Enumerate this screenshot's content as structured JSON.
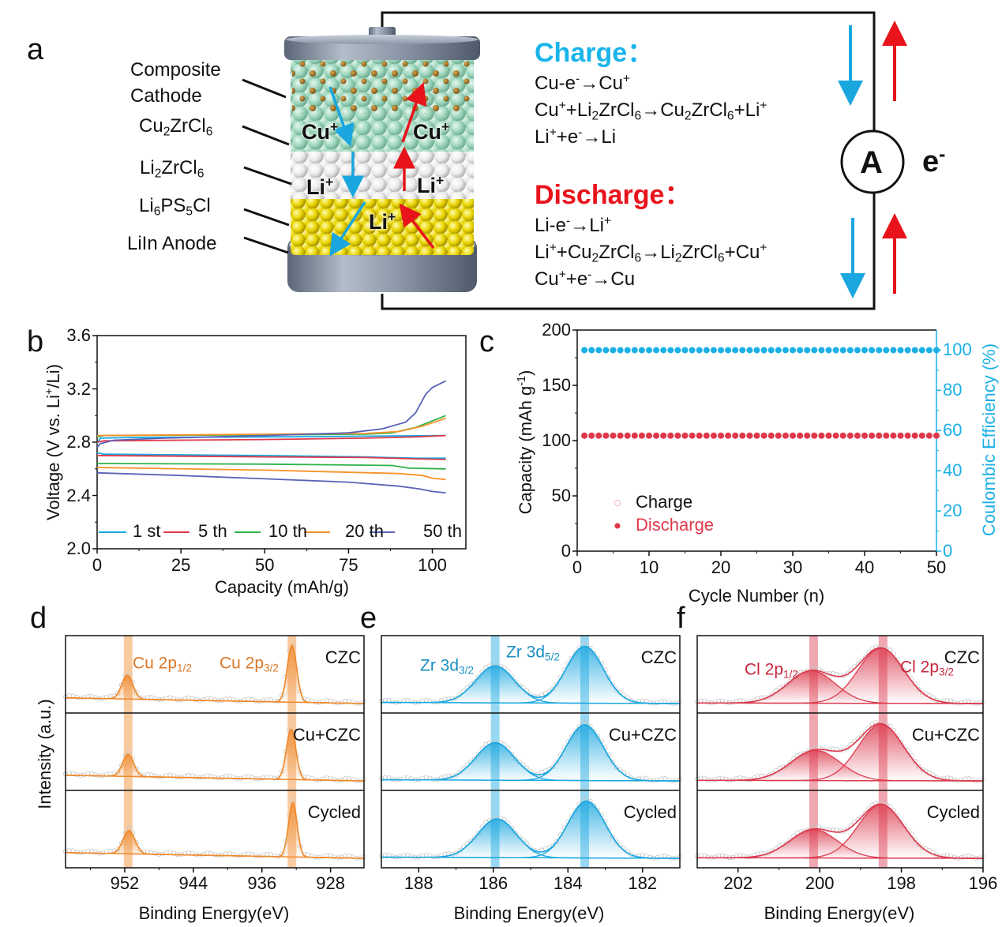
{
  "panel_letters": {
    "a": "a",
    "b": "b",
    "c": "c",
    "d": "d",
    "e": "e",
    "f": "f"
  },
  "schematic": {
    "layers": [
      "Composite<br>Cathode",
      "Cu<sub>2</sub>ZrCl<sub>6</sub>",
      "Li<sub>2</sub>ZrCl<sub>6</sub>",
      "Li<sub>6</sub>PS<sub>5</sub>Cl",
      "LiIn Anode"
    ],
    "ion_labels": {
      "cu_left": "Cu<sup>+</sup>",
      "cu_right": "Cu<sup>+</sup>",
      "li_left": "Li<sup>+</sup>",
      "li_right": "Li<sup>+</sup>",
      "li_bottom": "Li<sup>+</sup>"
    },
    "ammeter": "A",
    "electron": "e<sup>-</sup>",
    "charge_title": "Charge：",
    "charge_equations": [
      "Cu-e<sup>-</sup>→Cu<sup>+</sup>",
      "Cu<sup>+</sup>+Li<sub>2</sub>ZrCl<sub>6</sub>→Cu<sub>2</sub>ZrCl<sub>6</sub>+Li<sup>+</sup>",
      "Li<sup>+</sup>+e<sup>-</sup>→Li"
    ],
    "discharge_title": "Discharge：",
    "discharge_equations": [
      "Li-e<sup>-</sup>→Li<sup>+</sup>",
      "Li<sup>+</sup>+Cu<sub>2</sub>ZrCl<sub>6</sub>→Li<sub>2</sub>ZrCl<sub>6</sub>+Cu<sup>+</sup>",
      "Cu<sup>+</sup>+e<sup>-</sup>→Cu"
    ],
    "colors": {
      "charge": "#1aa7e0",
      "discharge": "#e8131b",
      "cathode": "#a9dcc6",
      "electrolyte_top": "#f2f2f2",
      "electrolyte_bottom": "#e6d200",
      "current_collector": "#7d8898"
    }
  },
  "chart_data": [
    {
      "id": "b",
      "type": "line",
      "xlabel": "Capacity (mAh/g)",
      "ylabel": "Voltage (V vs. Li<sup>+</sup>/Li)",
      "xlim": [
        0,
        110
      ],
      "ylim": [
        2.0,
        3.6
      ],
      "xticks": [
        0,
        25,
        50,
        75,
        100
      ],
      "yticks": [
        2.0,
        2.4,
        2.8,
        3.2,
        3.6
      ],
      "ytick_labels": [
        "2.0",
        "2.4",
        "2.8",
        "3.2",
        "3.6"
      ],
      "legend_position": "bottom",
      "series": [
        {
          "name": "1 st",
          "color": "#1aa7e0",
          "charge": [
            [
              0,
              2.79
            ],
            [
              1,
              2.83
            ],
            [
              10,
              2.835
            ],
            [
              50,
              2.84
            ],
            [
              80,
              2.845
            ],
            [
              104,
              2.85
            ]
          ],
          "discharge": [
            [
              0,
              2.72
            ],
            [
              2,
              2.71
            ],
            [
              50,
              2.7
            ],
            [
              80,
              2.69
            ],
            [
              95,
              2.68
            ],
            [
              104,
              2.68
            ]
          ]
        },
        {
          "name": "5 th",
          "color": "#e0384a",
          "charge": [
            [
              0,
              2.8
            ],
            [
              2,
              2.81
            ],
            [
              50,
              2.82
            ],
            [
              80,
              2.83
            ],
            [
              95,
              2.84
            ],
            [
              104,
              2.85
            ]
          ],
          "discharge": [
            [
              0,
              2.7
            ],
            [
              50,
              2.69
            ],
            [
              80,
              2.685
            ],
            [
              95,
              2.675
            ],
            [
              104,
              2.67
            ]
          ]
        },
        {
          "name": "10 th",
          "color": "#2eb24a",
          "charge": [
            [
              0,
              2.84
            ],
            [
              2,
              2.85
            ],
            [
              50,
              2.855
            ],
            [
              80,
              2.86
            ],
            [
              88,
              2.87
            ],
            [
              95,
              2.91
            ],
            [
              104,
              3.0
            ]
          ],
          "discharge": [
            [
              0,
              2.64
            ],
            [
              50,
              2.635
            ],
            [
              88,
              2.625
            ],
            [
              93,
              2.605
            ],
            [
              104,
              2.6
            ]
          ]
        },
        {
          "name": "20 th",
          "color": "#f7922a",
          "charge": [
            [
              0,
              2.85
            ],
            [
              50,
              2.86
            ],
            [
              80,
              2.865
            ],
            [
              90,
              2.88
            ],
            [
              97,
              2.92
            ],
            [
              104,
              2.98
            ]
          ],
          "discharge": [
            [
              0,
              2.61
            ],
            [
              50,
              2.59
            ],
            [
              90,
              2.565
            ],
            [
              97,
              2.55
            ],
            [
              100,
              2.53
            ],
            [
              104,
              2.52
            ]
          ]
        },
        {
          "name": "50 th",
          "color": "#5b63b7",
          "charge": [
            [
              0,
              2.76
            ],
            [
              1,
              2.79
            ],
            [
              5,
              2.815
            ],
            [
              20,
              2.83
            ],
            [
              50,
              2.85
            ],
            [
              75,
              2.87
            ],
            [
              85,
              2.9
            ],
            [
              92,
              2.95
            ],
            [
              95,
              3.02
            ],
            [
              98,
              3.16
            ],
            [
              100,
              3.21
            ],
            [
              104,
              3.26
            ]
          ],
          "discharge": [
            [
              0,
              2.57
            ],
            [
              25,
              2.55
            ],
            [
              50,
              2.525
            ],
            [
              75,
              2.5
            ],
            [
              90,
              2.47
            ],
            [
              96,
              2.45
            ],
            [
              100,
              2.43
            ],
            [
              104,
              2.42
            ]
          ]
        }
      ]
    },
    {
      "id": "c",
      "type": "scatter",
      "xlabel": "Cycle Number (n)",
      "ylabel": "Capacity (mAh g<sup>-1</sup>)",
      "y2label": "Coulombic Efficiency (%)",
      "xlim": [
        0,
        50
      ],
      "ylim": [
        0,
        200
      ],
      "y2lim": [
        0,
        110
      ],
      "xticks": [
        0,
        10,
        20,
        30,
        40,
        50
      ],
      "yticks": [
        0,
        50,
        100,
        150,
        200
      ],
      "y2ticks": [
        0,
        20,
        40,
        60,
        80,
        100
      ],
      "legend_position": "bottom-left",
      "cycles_from": 1,
      "cycles_to": 50,
      "series": [
        {
          "name": "Charge",
          "axis": "left",
          "marker": "open-circle",
          "color": "#f2b8c0",
          "value": 104.5
        },
        {
          "name": "Discharge",
          "axis": "left",
          "marker": "filled-circle",
          "color": "#e0384a",
          "value": 104.5
        },
        {
          "axis": "right",
          "marker": "filled-circle",
          "color": "#1ab0e6",
          "value": 100
        }
      ],
      "axis_color_right": "#1ab0e6"
    },
    {
      "id": "d",
      "type": "line",
      "subtype": "xps",
      "xlabel": "Binding Energy(eV)",
      "ylabel": "Intensity (a.u.)",
      "xlim": [
        958.9,
        924.1
      ],
      "xticks": [
        952,
        944,
        936,
        928
      ],
      "color": "#f08a2c",
      "label_color": "#d9782a",
      "bands": [
        951.6,
        932.5
      ],
      "peak_labels": [
        "Cu 2p<sub>1/2</sub>",
        "Cu 2p<sub>3/2</sub>"
      ],
      "samples": [
        {
          "label": "CZC",
          "baseline": [
            10,
            0
          ],
          "peaks": [
            {
              "center": 951.7,
              "height": 42,
              "sigma": 0.65
            },
            {
              "center": 932.5,
              "height": 100,
              "sigma": 0.55
            }
          ]
        },
        {
          "label": "Cu+CZC",
          "baseline": [
            10,
            0
          ],
          "peaks": [
            {
              "center": 951.6,
              "height": 39,
              "sigma": 0.65
            },
            {
              "center": 932.6,
              "height": 89,
              "sigma": 0.55
            }
          ]
        },
        {
          "label": "Cycled",
          "baseline": [
            10,
            0
          ],
          "peaks": [
            {
              "center": 951.5,
              "height": 41,
              "sigma": 0.7
            },
            {
              "center": 932.4,
              "height": 96,
              "sigma": 0.5
            }
          ]
        }
      ]
    },
    {
      "id": "e",
      "type": "line",
      "subtype": "xps",
      "xlabel": "Binding Energy(eV)",
      "xlim": [
        189.0,
        181.0
      ],
      "xticks": [
        188,
        186,
        184,
        182
      ],
      "color": "#1aa7e0",
      "label_color": "#1a8fc0",
      "bands": [
        185.95,
        183.55
      ],
      "peak_labels": [
        "Zr 3d<sub>3/2</sub>",
        "Zr 3d<sub>5/2</sub>"
      ],
      "samples": [
        {
          "label": "CZC",
          "baseline": [
            2,
            0
          ],
          "peaks": [
            {
              "center": 185.95,
              "height": 65,
              "sigma": 0.52
            },
            {
              "center": 183.55,
              "height": 100,
              "sigma": 0.5
            }
          ]
        },
        {
          "label": "Cu+CZC",
          "baseline": [
            2,
            0
          ],
          "peaks": [
            {
              "center": 185.95,
              "height": 66,
              "sigma": 0.52
            },
            {
              "center": 183.55,
              "height": 98,
              "sigma": 0.5
            }
          ]
        },
        {
          "label": "Cycled",
          "baseline": [
            2,
            0
          ],
          "peaks": [
            {
              "center": 185.9,
              "height": 68,
              "sigma": 0.52
            },
            {
              "center": 183.5,
              "height": 100,
              "sigma": 0.5
            }
          ]
        }
      ]
    },
    {
      "id": "f",
      "type": "line",
      "subtype": "xps",
      "xlabel": "Binding Energy(eV)",
      "xlim": [
        203.0,
        196.0
      ],
      "xticks": [
        202,
        200,
        198,
        196
      ],
      "color": "#dc3a4e",
      "label_color": "#c8283c",
      "bands": [
        200.15,
        198.45
      ],
      "peak_labels": [
        "Cl 2p<sub>1/2</sub>",
        "Cl 2p<sub>3/2</sub>"
      ],
      "samples": [
        {
          "label": "CZC",
          "baseline": [
            1,
            0
          ],
          "peaks": [
            {
              "center": 200.2,
              "height": 57,
              "sigma": 0.58
            },
            {
              "center": 198.5,
              "height": 97,
              "sigma": 0.56
            }
          ]
        },
        {
          "label": "Cu+CZC",
          "baseline": [
            1,
            0
          ],
          "peaks": [
            {
              "center": 200.1,
              "height": 53,
              "sigma": 0.6
            },
            {
              "center": 198.5,
              "height": 99,
              "sigma": 0.56
            }
          ]
        },
        {
          "label": "Cycled",
          "baseline": [
            1,
            0
          ],
          "peaks": [
            {
              "center": 200.15,
              "height": 50,
              "sigma": 0.58
            },
            {
              "center": 198.5,
              "height": 94,
              "sigma": 0.56
            }
          ]
        }
      ]
    }
  ]
}
